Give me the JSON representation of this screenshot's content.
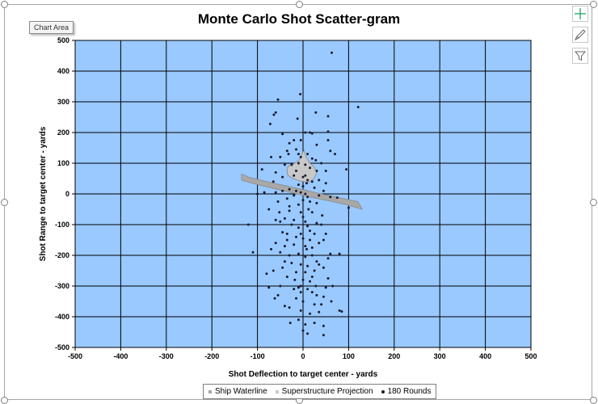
{
  "ui": {
    "tooltip": "Chart Area",
    "side_buttons": [
      {
        "name": "chart-elements-button",
        "icon": "plus-icon"
      },
      {
        "name": "chart-styles-button",
        "icon": "brush-icon"
      },
      {
        "name": "chart-filters-button",
        "icon": "filter-icon"
      }
    ]
  },
  "colors": {
    "plot_background": "#99c9ff",
    "gridline": "#000000",
    "points": "#1a1a2e",
    "ship_hull": "#a8a8a8",
    "ship_superstructure": "#c8c8c8"
  },
  "chart_data": {
    "type": "scatter",
    "title": "Monte Carlo Shot Scatter-gram",
    "xlabel": "Shot Deflection to target center - yards",
    "ylabel": "Shot Range to target center - yards",
    "xlim": [
      -500,
      500
    ],
    "ylim": [
      -500,
      500
    ],
    "xticks": [
      "-500",
      "-400",
      "-300",
      "-200",
      "-100",
      "0",
      "100",
      "200",
      "300",
      "400",
      "500"
    ],
    "yticks": [
      "500",
      "400",
      "300",
      "200",
      "100",
      "0",
      "-100",
      "-200",
      "-300",
      "-400",
      "-500"
    ],
    "grid": true,
    "legend_position": "bottom",
    "series": [
      {
        "name": "Ship Waterline",
        "marker": "square",
        "color": "#a8a8a8",
        "points": [
          [
            -135,
            65
          ],
          [
            -120,
            55
          ],
          [
            -80,
            40
          ],
          [
            -40,
            27
          ],
          [
            0,
            14
          ],
          [
            40,
            0
          ],
          [
            80,
            -12
          ],
          [
            120,
            -25
          ],
          [
            130,
            -50
          ],
          [
            95,
            -35
          ],
          [
            55,
            -22
          ],
          [
            15,
            -10
          ],
          [
            -25,
            4
          ],
          [
            -65,
            18
          ],
          [
            -105,
            32
          ],
          [
            -135,
            45
          ]
        ]
      },
      {
        "name": "Superstructure Projection",
        "marker": "square",
        "color": "#c8c8c8",
        "points": [
          [
            -35,
            85
          ],
          [
            -30,
            92
          ],
          [
            -18,
            100
          ],
          [
            -8,
            110
          ],
          [
            -3,
            128
          ],
          [
            2,
            142
          ],
          [
            7,
            120
          ],
          [
            14,
            102
          ],
          [
            24,
            88
          ],
          [
            30,
            70
          ],
          [
            24,
            50
          ],
          [
            12,
            38
          ],
          [
            -6,
            42
          ],
          [
            -22,
            50
          ],
          [
            -34,
            62
          ]
        ]
      },
      {
        "name": "180 Rounds",
        "marker": "circle",
        "color": "#1a1a2e",
        "points": [
          [
            63,
            460
          ],
          [
            -6,
            325
          ],
          [
            -55,
            307
          ],
          [
            121,
            283
          ],
          [
            -60,
            265
          ],
          [
            28,
            265
          ],
          [
            -64,
            258
          ],
          [
            -12,
            245
          ],
          [
            -72,
            228
          ],
          [
            55,
            253
          ],
          [
            5,
            200
          ],
          [
            15,
            200
          ],
          [
            20,
            197
          ],
          [
            -45,
            195
          ],
          [
            55,
            203
          ],
          [
            -5,
            175
          ],
          [
            -30,
            165
          ],
          [
            55,
            175
          ],
          [
            -35,
            140
          ],
          [
            -32,
            130
          ],
          [
            -15,
            145
          ],
          [
            -10,
            130
          ],
          [
            -5,
            120
          ],
          [
            10,
            130
          ],
          [
            20,
            115
          ],
          [
            28,
            110
          ],
          [
            40,
            100
          ],
          [
            -40,
            95
          ],
          [
            -25,
            95
          ],
          [
            -10,
            100
          ],
          [
            5,
            95
          ],
          [
            15,
            85
          ],
          [
            30,
            75
          ],
          [
            50,
            75
          ],
          [
            95,
            80
          ],
          [
            -90,
            80
          ],
          [
            -60,
            70
          ],
          [
            -45,
            55
          ],
          [
            -20,
            60
          ],
          [
            0,
            55
          ],
          [
            10,
            45
          ],
          [
            20,
            40
          ],
          [
            -65,
            40
          ],
          [
            -10,
            30
          ],
          [
            0,
            25
          ],
          [
            8,
            35
          ],
          [
            -30,
            15
          ],
          [
            -15,
            10
          ],
          [
            25,
            20
          ],
          [
            -85,
            5
          ],
          [
            -45,
            10
          ],
          [
            45,
            10
          ],
          [
            -5,
            5
          ],
          [
            5,
            0
          ],
          [
            -20,
            -5
          ],
          [
            10,
            -10
          ],
          [
            60,
            -10
          ],
          [
            -60,
            5
          ],
          [
            35,
            -5
          ],
          [
            75,
            -12
          ],
          [
            -100,
            0
          ],
          [
            -35,
            -15
          ],
          [
            0,
            -20
          ],
          [
            15,
            -25
          ],
          [
            -55,
            -25
          ],
          [
            30,
            -30
          ],
          [
            -10,
            -35
          ],
          [
            100,
            -45
          ],
          [
            -30,
            -55
          ],
          [
            -5,
            -60
          ],
          [
            -75,
            -50
          ],
          [
            20,
            -60
          ],
          [
            -60,
            -85
          ],
          [
            -40,
            -80
          ],
          [
            -20,
            -85
          ],
          [
            0,
            -75
          ],
          [
            5,
            -90
          ],
          [
            -50,
            -90
          ],
          [
            30,
            -95
          ],
          [
            -120,
            -100
          ],
          [
            -25,
            -100
          ],
          [
            -10,
            -110
          ],
          [
            10,
            -105
          ],
          [
            15,
            -120
          ],
          [
            -45,
            -125
          ],
          [
            -5,
            -130
          ],
          [
            25,
            -130
          ],
          [
            40,
            -100
          ],
          [
            -35,
            -150
          ],
          [
            -15,
            -140
          ],
          [
            0,
            -145
          ],
          [
            15,
            -150
          ],
          [
            50,
            -130
          ],
          [
            -60,
            -160
          ],
          [
            -40,
            -170
          ],
          [
            -20,
            -165
          ],
          [
            5,
            -170
          ],
          [
            20,
            -175
          ],
          [
            35,
            -160
          ],
          [
            -110,
            -190
          ],
          [
            -50,
            -190
          ],
          [
            -30,
            -200
          ],
          [
            -10,
            -195
          ],
          [
            5,
            -205
          ],
          [
            20,
            -200
          ],
          [
            30,
            -220
          ],
          [
            -40,
            -220
          ],
          [
            -25,
            -225
          ],
          [
            -5,
            -230
          ],
          [
            10,
            -235
          ],
          [
            60,
            -195
          ],
          [
            80,
            -195
          ],
          [
            -65,
            -250
          ],
          [
            -15,
            -255
          ],
          [
            5,
            -255
          ],
          [
            25,
            -250
          ],
          [
            45,
            -240
          ],
          [
            -80,
            -260
          ],
          [
            -35,
            -270
          ],
          [
            0,
            -280
          ],
          [
            15,
            -285
          ],
          [
            55,
            -275
          ],
          [
            -75,
            -305
          ],
          [
            -50,
            -300
          ],
          [
            -10,
            -305
          ],
          [
            10,
            -310
          ],
          [
            50,
            -305
          ],
          [
            65,
            -300
          ],
          [
            -5,
            -320
          ],
          [
            20,
            -320
          ],
          [
            30,
            -330
          ],
          [
            45,
            -335
          ],
          [
            -55,
            -330
          ],
          [
            -15,
            -340
          ],
          [
            0,
            -350
          ],
          [
            25,
            -360
          ],
          [
            -40,
            -365
          ],
          [
            -30,
            -370
          ],
          [
            40,
            -360
          ],
          [
            -20,
            -310
          ],
          [
            -5,
            -380
          ],
          [
            15,
            -390
          ],
          [
            35,
            -385
          ],
          [
            80,
            -380
          ],
          [
            85,
            -383
          ],
          [
            -10,
            -410
          ],
          [
            5,
            -425
          ],
          [
            25,
            -420
          ],
          [
            45,
            -430
          ],
          [
            0,
            -445
          ],
          [
            10,
            -455
          ],
          [
            45,
            -460
          ],
          [
            -5,
            -300
          ],
          [
            20,
            -270
          ],
          [
            35,
            -230
          ],
          [
            -45,
            -240
          ],
          [
            55,
            -210
          ],
          [
            -70,
            -180
          ],
          [
            -35,
            -130
          ],
          [
            45,
            -150
          ],
          [
            5,
            60
          ],
          [
            -15,
            75
          ],
          [
            35,
            45
          ],
          [
            50,
            35
          ],
          [
            -50,
            120
          ],
          [
            60,
            140
          ],
          [
            -20,
            175
          ],
          [
            30,
            160
          ],
          [
            -70,
            120
          ],
          [
            70,
            130
          ],
          [
            12,
            -50
          ],
          [
            -30,
            -40
          ],
          [
            42,
            -70
          ],
          [
            -52,
            -60
          ],
          [
            8,
            -180
          ],
          [
            -18,
            -280
          ],
          [
            28,
            -300
          ],
          [
            -28,
            -420
          ],
          [
            62,
            -350
          ],
          [
            -62,
            -340
          ]
        ]
      }
    ]
  }
}
